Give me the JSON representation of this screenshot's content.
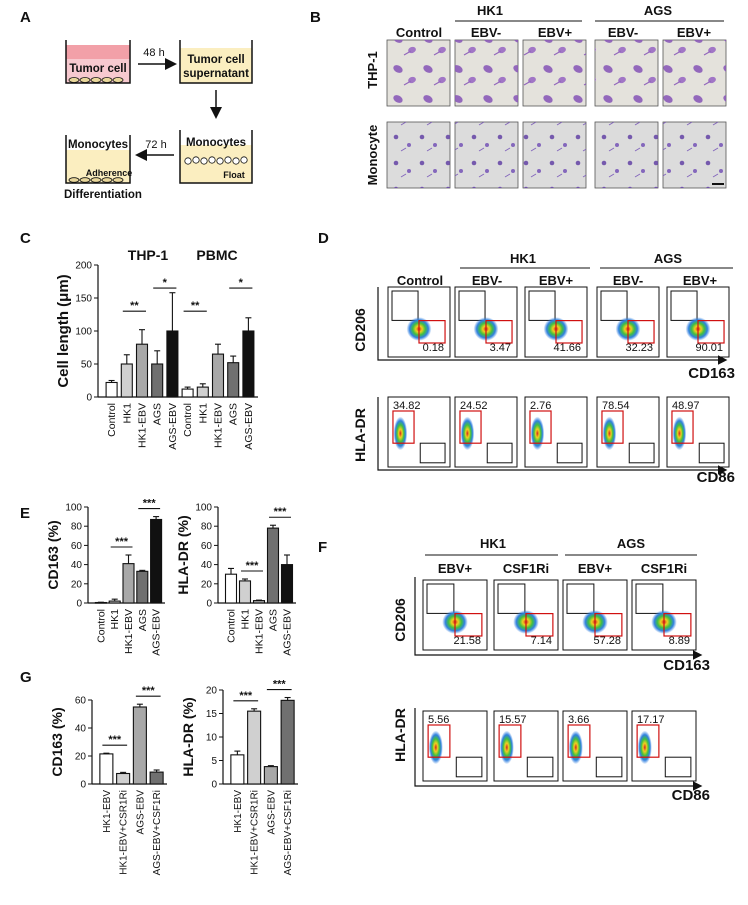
{
  "panels": {
    "A": {
      "letter": "A",
      "box1": "Tumor cell",
      "box2_l1": "Tumor cell",
      "box2_l2": "supernatant",
      "box3": "Monocytes",
      "box3_float": "Float",
      "box4": "Monocytes",
      "box4_adh": "Adherence",
      "arrow1": "48 h",
      "arrow2": "72 h",
      "differentiation": "Differentiation"
    },
    "B": {
      "letter": "B",
      "groups": [
        "HK1",
        "AGS"
      ],
      "cols": [
        "Control",
        "EBV-",
        "EBV+",
        "EBV-",
        "EBV+"
      ],
      "rows": [
        "THP-1",
        "Monocyte"
      ]
    },
    "C": {
      "letter": "C",
      "group_labels": [
        "THP-1",
        "PBMC"
      ]
    },
    "D": {
      "letter": "D",
      "groups": [
        "HK1",
        "AGS"
      ],
      "cols": [
        "Control",
        "EBV-",
        "EBV+",
        "EBV-",
        "EBV+"
      ],
      "row1_y": "CD206",
      "row1_x": "CD163",
      "row1_values": [
        "0.18",
        "3.47",
        "41.66",
        "32.23",
        "90.01"
      ],
      "row2_y": "HLA-DR",
      "row2_x": "CD86",
      "row2_values": [
        "34.82",
        "24.52",
        "2.76",
        "78.54",
        "48.97"
      ]
    },
    "E": {
      "letter": "E"
    },
    "F": {
      "letter": "F",
      "groups": [
        "HK1",
        "AGS"
      ],
      "cols": [
        "EBV+",
        "CSF1Ri",
        "EBV+",
        "CSF1Ri"
      ],
      "row1_y": "CD206",
      "row1_x": "CD163",
      "row1_values": [
        "21.58",
        "7.14",
        "57.28",
        "8.89"
      ],
      "row2_y": "HLA-DR",
      "row2_x": "CD86",
      "row2_values": [
        "5.56",
        "15.57",
        "3.66",
        "17.17"
      ]
    },
    "G": {
      "letter": "G"
    }
  },
  "colors": {
    "white": "#ffffff",
    "lightgray": "#d0d0d0",
    "gray": "#a8a8a8",
    "darkgray": "#707070",
    "black": "#111111"
  },
  "chart_data": [
    {
      "id": "C",
      "type": "bar",
      "ylabel": "Cell length (μm)",
      "ylim": [
        0,
        200
      ],
      "yticks": [
        0,
        50,
        100,
        150,
        200
      ],
      "categories": [
        "Control",
        "HK1",
        "HK1-EBV",
        "AGS",
        "AGS-EBV",
        "Control",
        "HK1",
        "HK1-EBV",
        "AGS",
        "AGS-EBV"
      ],
      "values": [
        22,
        50,
        80,
        50,
        100,
        12,
        15,
        65,
        52,
        100
      ],
      "errors": [
        3,
        14,
        22,
        20,
        58,
        3,
        5,
        15,
        10,
        20
      ],
      "colors": [
        "#ffffff",
        "#d0d0d0",
        "#a8a8a8",
        "#707070",
        "#111111",
        "#ffffff",
        "#d0d0d0",
        "#a8a8a8",
        "#707070",
        "#111111"
      ],
      "sig": [
        {
          "from": 1,
          "to": 2,
          "label": "**"
        },
        {
          "from": 3,
          "to": 4,
          "label": "*"
        },
        {
          "from": 5,
          "to": 6,
          "label": "**"
        },
        {
          "from": 8,
          "to": 9,
          "label": "*"
        }
      ]
    },
    {
      "id": "E1",
      "type": "bar",
      "ylabel": "CD163 (%)",
      "ylim": [
        0,
        100
      ],
      "yticks": [
        0,
        20,
        40,
        60,
        80,
        100
      ],
      "categories": [
        "Control",
        "HK1",
        "HK1-EBV",
        "AGS",
        "AGS-EBV"
      ],
      "values": [
        0.5,
        2,
        41,
        33,
        87
      ],
      "errors": [
        0.3,
        2,
        9,
        1,
        3
      ],
      "colors": [
        "#ffffff",
        "#d0d0d0",
        "#a8a8a8",
        "#707070",
        "#111111"
      ],
      "sig": [
        {
          "from": 1,
          "to": 2,
          "label": "***"
        },
        {
          "from": 3,
          "to": 4,
          "label": "***"
        }
      ]
    },
    {
      "id": "E2",
      "type": "bar",
      "ylabel": "HLA-DR (%)",
      "ylim": [
        0,
        100
      ],
      "yticks": [
        0,
        20,
        40,
        60,
        80,
        100
      ],
      "categories": [
        "Control",
        "HK1",
        "HK1-EBV",
        "AGS",
        "AGS-EBV"
      ],
      "values": [
        30,
        23,
        2.5,
        78,
        40
      ],
      "errors": [
        6,
        2,
        0.5,
        3,
        10
      ],
      "colors": [
        "#ffffff",
        "#d0d0d0",
        "#a8a8a8",
        "#707070",
        "#111111"
      ],
      "sig": [
        {
          "from": 1,
          "to": 2,
          "label": "***"
        },
        {
          "from": 3,
          "to": 4,
          "label": "***"
        }
      ]
    },
    {
      "id": "G1",
      "type": "bar",
      "ylabel": "CD163 (%)",
      "ylim": [
        0,
        60
      ],
      "yticks": [
        0,
        20,
        40,
        60
      ],
      "categories": [
        "HK1-EBV",
        "HK1-EBV+CSR1Ri",
        "AGS-EBV",
        "AGS-EBV+CSF1Ri"
      ],
      "values": [
        21.5,
        7.5,
        55,
        8.5
      ],
      "errors": [
        0.5,
        0.8,
        2,
        1.5
      ],
      "colors": [
        "#ffffff",
        "#d0d0d0",
        "#a8a8a8",
        "#707070"
      ],
      "sig": [
        {
          "from": 0,
          "to": 1,
          "label": "***"
        },
        {
          "from": 2,
          "to": 3,
          "label": "***"
        }
      ]
    },
    {
      "id": "G2",
      "type": "bar",
      "ylabel": "HLA-DR (%)",
      "ylim": [
        0,
        20
      ],
      "yticks": [
        0,
        5,
        10,
        15,
        20
      ],
      "categories": [
        "HK1-EBV",
        "HK1-EBV+CSR1Ri",
        "AGS-EBV",
        "AGS-EBV+CSF1Ri"
      ],
      "values": [
        6.2,
        15.5,
        3.7,
        17.8
      ],
      "errors": [
        0.8,
        0.5,
        0.2,
        0.6
      ],
      "colors": [
        "#ffffff",
        "#d0d0d0",
        "#a8a8a8",
        "#707070"
      ],
      "sig": [
        {
          "from": 0,
          "to": 1,
          "label": "***"
        },
        {
          "from": 2,
          "to": 3,
          "label": "***"
        }
      ]
    }
  ]
}
